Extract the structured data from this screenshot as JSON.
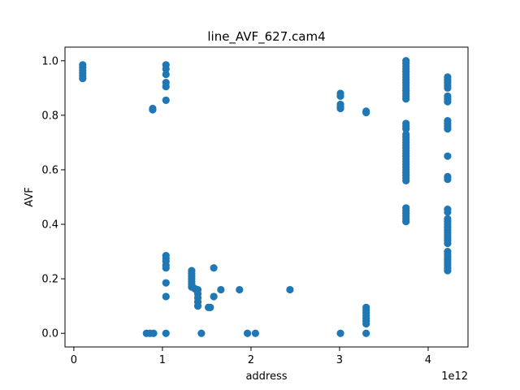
{
  "chart_data": {
    "type": "scatter",
    "title": "line_AVF_627.cam4",
    "xlabel": "address",
    "ylabel": "AVF",
    "x_offset_label": "1e12",
    "xlim": [
      -0.1,
      4.45
    ],
    "ylim": [
      -0.05,
      1.05
    ],
    "xticks": [
      0,
      1,
      2,
      3,
      4
    ],
    "xtick_labels": [
      "0",
      "1",
      "2",
      "3",
      "4"
    ],
    "yticks": [
      0.0,
      0.2,
      0.4,
      0.6,
      0.8,
      1.0
    ],
    "ytick_labels": [
      "0.0",
      "0.2",
      "0.4",
      "0.6",
      "0.8",
      "1.0"
    ],
    "grid": false,
    "marker_color": "#1f77b4",
    "series": [
      {
        "points": [
          [
            0.1,
            0.985
          ],
          [
            0.1,
            0.975
          ],
          [
            0.1,
            0.965
          ],
          [
            0.1,
            0.955
          ],
          [
            0.1,
            0.945
          ],
          [
            0.1,
            0.935
          ],
          [
            0.82,
            0.0
          ],
          [
            0.86,
            0.0
          ],
          [
            0.9,
            0.0
          ],
          [
            0.89,
            0.825
          ],
          [
            0.89,
            0.82
          ],
          [
            1.04,
            0.985
          ],
          [
            1.04,
            0.97
          ],
          [
            1.04,
            0.95
          ],
          [
            1.04,
            0.92
          ],
          [
            1.04,
            0.905
          ],
          [
            1.04,
            0.855
          ],
          [
            1.04,
            0.285
          ],
          [
            1.04,
            0.275
          ],
          [
            1.04,
            0.265
          ],
          [
            1.04,
            0.25
          ],
          [
            1.04,
            0.24
          ],
          [
            1.04,
            0.185
          ],
          [
            1.04,
            0.135
          ],
          [
            1.04,
            0.0
          ],
          [
            1.33,
            0.23
          ],
          [
            1.33,
            0.22
          ],
          [
            1.33,
            0.21
          ],
          [
            1.33,
            0.2
          ],
          [
            1.33,
            0.19
          ],
          [
            1.33,
            0.18
          ],
          [
            1.33,
            0.17
          ],
          [
            1.36,
            0.165
          ],
          [
            1.38,
            0.16
          ],
          [
            1.4,
            0.16
          ],
          [
            1.4,
            0.145
          ],
          [
            1.4,
            0.13
          ],
          [
            1.4,
            0.115
          ],
          [
            1.4,
            0.1
          ],
          [
            1.44,
            0.0
          ],
          [
            1.52,
            0.095
          ],
          [
            1.54,
            0.095
          ],
          [
            1.58,
            0.24
          ],
          [
            1.58,
            0.135
          ],
          [
            1.66,
            0.16
          ],
          [
            1.87,
            0.16
          ],
          [
            1.96,
            0.0
          ],
          [
            2.05,
            0.0
          ],
          [
            2.44,
            0.16
          ],
          [
            3.01,
            0.88
          ],
          [
            3.01,
            0.87
          ],
          [
            3.01,
            0.84
          ],
          [
            3.01,
            0.83
          ],
          [
            3.01,
            0.825
          ],
          [
            3.01,
            0.0
          ],
          [
            3.3,
            0.815
          ],
          [
            3.3,
            0.81
          ],
          [
            3.3,
            0.095
          ],
          [
            3.3,
            0.085
          ],
          [
            3.3,
            0.075
          ],
          [
            3.3,
            0.065
          ],
          [
            3.3,
            0.055
          ],
          [
            3.3,
            0.045
          ],
          [
            3.3,
            0.035
          ],
          [
            3.3,
            0.0
          ],
          [
            3.75,
            1.0
          ],
          [
            3.75,
            0.99
          ],
          [
            3.75,
            0.98
          ],
          [
            3.75,
            0.97
          ],
          [
            3.75,
            0.96
          ],
          [
            3.75,
            0.95
          ],
          [
            3.75,
            0.94
          ],
          [
            3.75,
            0.93
          ],
          [
            3.75,
            0.92
          ],
          [
            3.75,
            0.91
          ],
          [
            3.75,
            0.9
          ],
          [
            3.75,
            0.89
          ],
          [
            3.75,
            0.88
          ],
          [
            3.75,
            0.87
          ],
          [
            3.75,
            0.86
          ],
          [
            3.75,
            0.77
          ],
          [
            3.75,
            0.76
          ],
          [
            3.75,
            0.75
          ],
          [
            3.75,
            0.73
          ],
          [
            3.75,
            0.72
          ],
          [
            3.75,
            0.71
          ],
          [
            3.75,
            0.7
          ],
          [
            3.75,
            0.69
          ],
          [
            3.75,
            0.68
          ],
          [
            3.75,
            0.67
          ],
          [
            3.75,
            0.66
          ],
          [
            3.75,
            0.65
          ],
          [
            3.75,
            0.64
          ],
          [
            3.75,
            0.63
          ],
          [
            3.75,
            0.62
          ],
          [
            3.75,
            0.61
          ],
          [
            3.75,
            0.6
          ],
          [
            3.75,
            0.59
          ],
          [
            3.75,
            0.58
          ],
          [
            3.75,
            0.57
          ],
          [
            3.75,
            0.56
          ],
          [
            3.75,
            0.46
          ],
          [
            3.75,
            0.45
          ],
          [
            3.75,
            0.44
          ],
          [
            3.75,
            0.43
          ],
          [
            3.75,
            0.42
          ],
          [
            3.75,
            0.41
          ],
          [
            4.22,
            0.94
          ],
          [
            4.22,
            0.93
          ],
          [
            4.22,
            0.92
          ],
          [
            4.22,
            0.91
          ],
          [
            4.22,
            0.9
          ],
          [
            4.22,
            0.87
          ],
          [
            4.22,
            0.86
          ],
          [
            4.22,
            0.85
          ],
          [
            4.22,
            0.78
          ],
          [
            4.22,
            0.77
          ],
          [
            4.22,
            0.76
          ],
          [
            4.22,
            0.75
          ],
          [
            4.22,
            0.65
          ],
          [
            4.22,
            0.575
          ],
          [
            4.22,
            0.565
          ],
          [
            4.22,
            0.455
          ],
          [
            4.22,
            0.445
          ],
          [
            4.22,
            0.42
          ],
          [
            4.22,
            0.41
          ],
          [
            4.22,
            0.4
          ],
          [
            4.22,
            0.39
          ],
          [
            4.22,
            0.38
          ],
          [
            4.22,
            0.37
          ],
          [
            4.22,
            0.36
          ],
          [
            4.22,
            0.35
          ],
          [
            4.22,
            0.34
          ],
          [
            4.22,
            0.33
          ],
          [
            4.22,
            0.3
          ],
          [
            4.22,
            0.29
          ],
          [
            4.22,
            0.28
          ],
          [
            4.22,
            0.27
          ],
          [
            4.22,
            0.26
          ],
          [
            4.22,
            0.25
          ],
          [
            4.22,
            0.24
          ],
          [
            4.22,
            0.23
          ]
        ]
      }
    ]
  }
}
